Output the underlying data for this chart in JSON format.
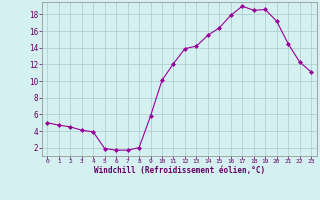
{
  "x": [
    0,
    1,
    2,
    3,
    4,
    5,
    6,
    7,
    8,
    9,
    10,
    11,
    12,
    13,
    14,
    15,
    16,
    17,
    18,
    19,
    20,
    21,
    22,
    23
  ],
  "y": [
    5.0,
    4.7,
    4.5,
    4.1,
    3.9,
    1.9,
    1.7,
    1.7,
    2.0,
    5.8,
    10.1,
    12.1,
    13.9,
    14.2,
    15.5,
    16.4,
    17.9,
    19.0,
    18.5,
    18.6,
    17.2,
    14.5,
    12.3,
    11.1
  ],
  "line_color": "#990099",
  "marker": "D",
  "marker_size": 2.0,
  "bg_color": "#d4f0f0",
  "grid_color": "#aacccc",
  "xlabel": "Windchill (Refroidissement éolien,°C)",
  "xlim": [
    -0.5,
    23.5
  ],
  "ylim": [
    1.0,
    19.5
  ],
  "yticks": [
    2,
    4,
    6,
    8,
    10,
    12,
    14,
    16,
    18
  ],
  "xticks": [
    0,
    1,
    2,
    3,
    4,
    5,
    6,
    7,
    8,
    9,
    10,
    11,
    12,
    13,
    14,
    15,
    16,
    17,
    18,
    19,
    20,
    21,
    22,
    23
  ]
}
